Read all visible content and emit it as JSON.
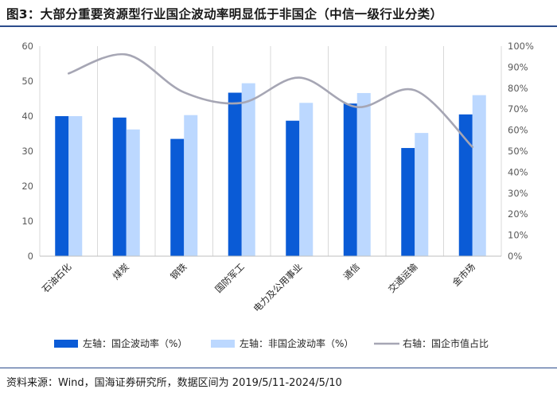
{
  "title": "图3：大部分重要资源型行业国企波动率明显低于非国企（中信一级行业分类）",
  "source": "资料来源：Wind，国海证券研究所，数据区间为 2019/5/11-2024/5/10",
  "colors": {
    "soe": "#0a5bd6",
    "non_soe": "#bcd8ff",
    "share": "#a6a6b4",
    "grid": "#d9d9d9",
    "rule": "#2b4c8c"
  },
  "chart_data": {
    "type": "bar",
    "categories": [
      "石油石化",
      "煤炭",
      "钢铁",
      "国防军工",
      "电力及公用事业",
      "通信",
      "交通运输",
      "金市场"
    ],
    "series": [
      {
        "name": "左轴：国企波动率（%）",
        "type": "bar",
        "axis": "left",
        "values": [
          40,
          39.6,
          33.5,
          46.7,
          38.7,
          43.6,
          30.9,
          40.5
        ]
      },
      {
        "name": "左轴：非国企波动率（%）",
        "type": "bar",
        "axis": "left",
        "values": [
          40,
          36.2,
          40.3,
          49.4,
          43.8,
          46.6,
          35.2,
          46
        ]
      },
      {
        "name": "右轴：国企市值占比",
        "type": "line",
        "axis": "right",
        "values": [
          87,
          96,
          78,
          73,
          85,
          71,
          79,
          52
        ]
      }
    ],
    "y_left": {
      "min": 0,
      "max": 60,
      "ticks": [
        0,
        10,
        20,
        30,
        40,
        50,
        60
      ]
    },
    "y_right": {
      "min": 0,
      "max": 100,
      "ticks": [
        "0%",
        "10%",
        "20%",
        "30%",
        "40%",
        "50%",
        "60%",
        "70%",
        "80%",
        "90%",
        "100%"
      ]
    },
    "grid": "vertical",
    "legend_position": "bottom"
  }
}
